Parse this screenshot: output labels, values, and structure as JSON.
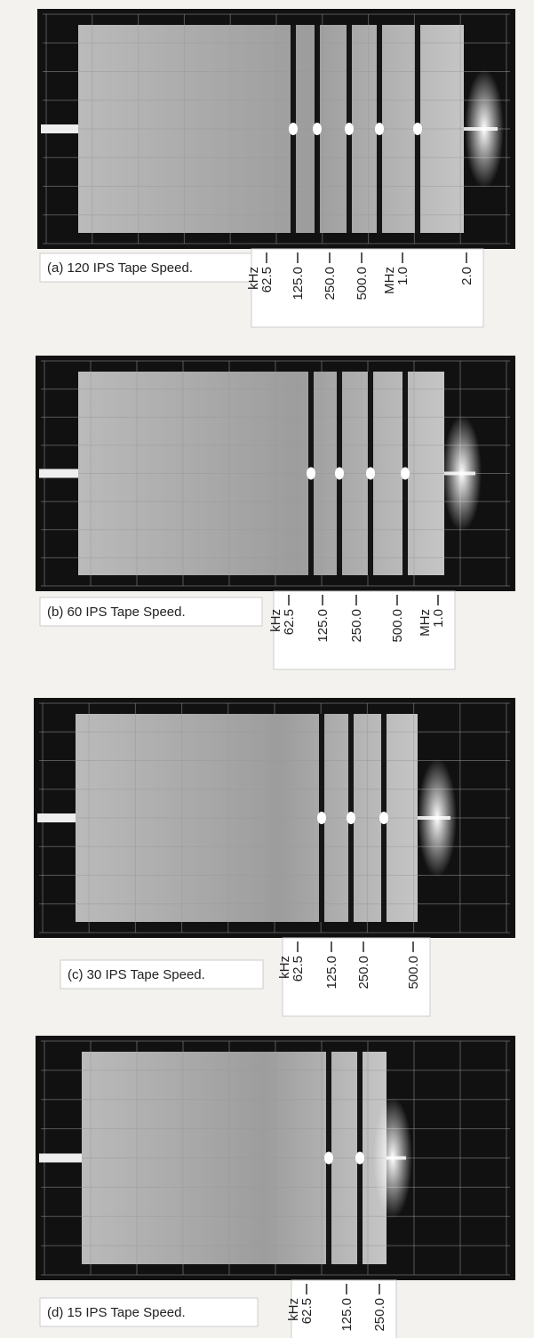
{
  "panels": [
    {
      "caption": "(a) 120 IPS Tape Speed.",
      "markers": [
        {
          "unit": "kHz",
          "label": "62.5"
        },
        {
          "label": "125.0"
        },
        {
          "label": "250.0"
        },
        {
          "label": "500.0"
        },
        {
          "unit": "MHz",
          "label": "1.0"
        },
        {
          "label": "2.0"
        }
      ]
    },
    {
      "caption": "(b) 60 IPS Tape Speed.",
      "markers": [
        {
          "unit": "kHz",
          "label": "62.5"
        },
        {
          "label": "125.0"
        },
        {
          "label": "250.0"
        },
        {
          "label": "500.0"
        },
        {
          "unit": "MHz",
          "label": "1.0"
        }
      ]
    },
    {
      "caption": "(c) 30 IPS Tape Speed.",
      "markers": [
        {
          "unit": "kHz",
          "label": "62.5"
        },
        {
          "label": "125.0"
        },
        {
          "label": "250.0"
        },
        {
          "label": "500.0"
        }
      ]
    },
    {
      "caption": "(d) 15 IPS Tape Speed.",
      "markers": [
        {
          "unit": "kHz",
          "label": "62.5"
        },
        {
          "label": "125.0"
        },
        {
          "label": "250.0"
        }
      ]
    }
  ]
}
